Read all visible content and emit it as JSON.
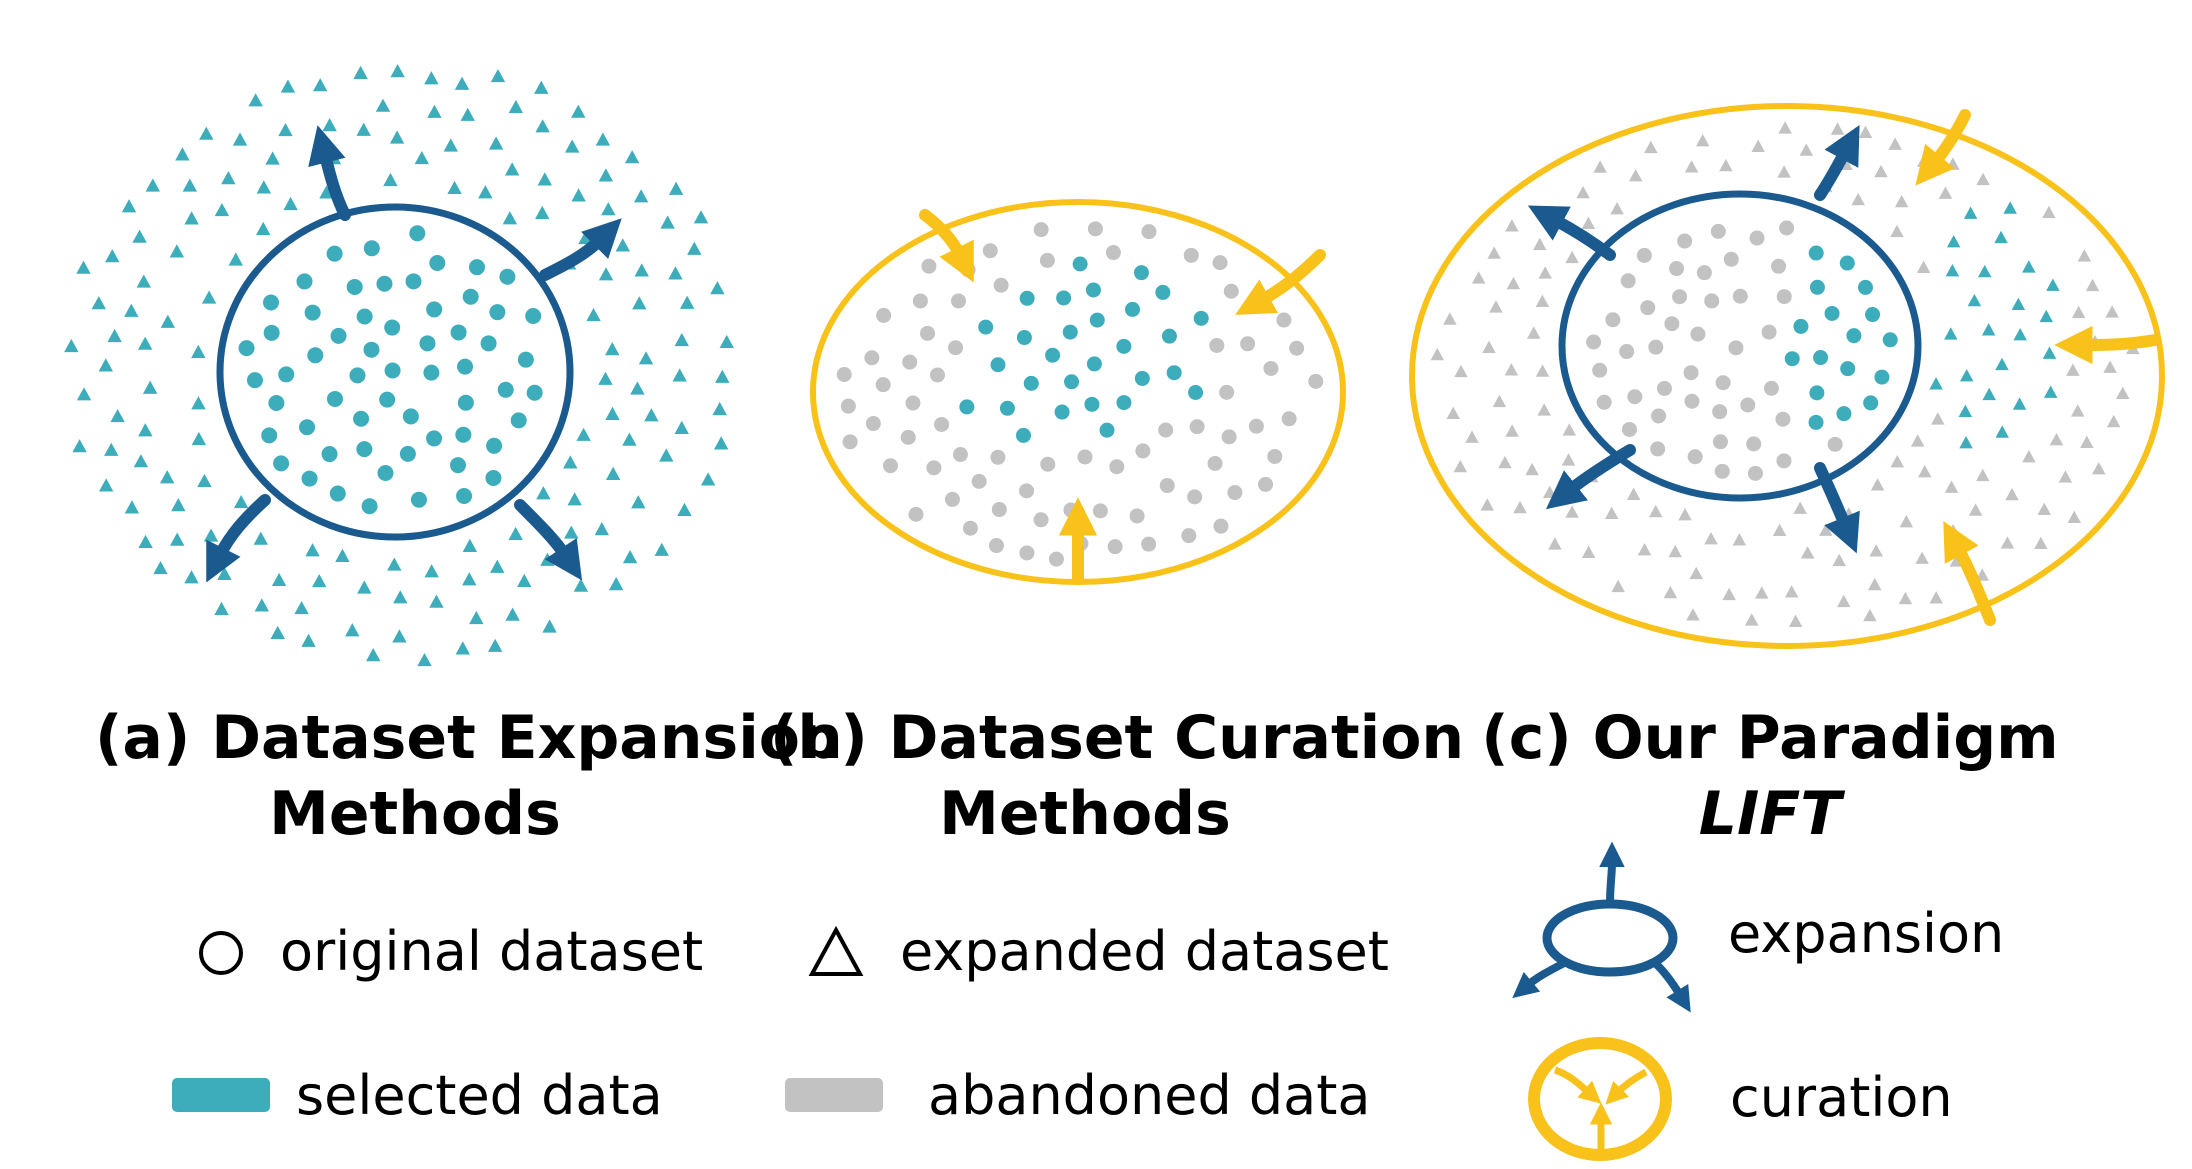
{
  "colors": {
    "selected": "#3eadbb",
    "abandoned": "#c2c2c2",
    "expansion": "#1b5a8f",
    "curation": "#f8c21b"
  },
  "panels": [
    {
      "id": "a",
      "label_line1": "(a) Dataset Expansion",
      "label_line2": "Methods"
    },
    {
      "id": "b",
      "label_line1": "(b) Dataset Curation",
      "label_line2": "Methods"
    },
    {
      "id": "c",
      "label_line1": "(c) Our Paradigm",
      "label_line2": "LIFT"
    }
  ],
  "legend": {
    "original": "original dataset",
    "expanded": "expanded dataset",
    "selected": "selected data",
    "abandoned": "abandoned data",
    "expansion": "expansion",
    "curation": "curation"
  },
  "icons": {
    "circle": "circle-outline-icon",
    "triangle": "triangle-outline-icon",
    "selected": "teal-swatch-icon",
    "abandoned": "gray-swatch-icon",
    "expansion": "expansion-arrows-icon",
    "curation": "curation-arrows-icon"
  }
}
